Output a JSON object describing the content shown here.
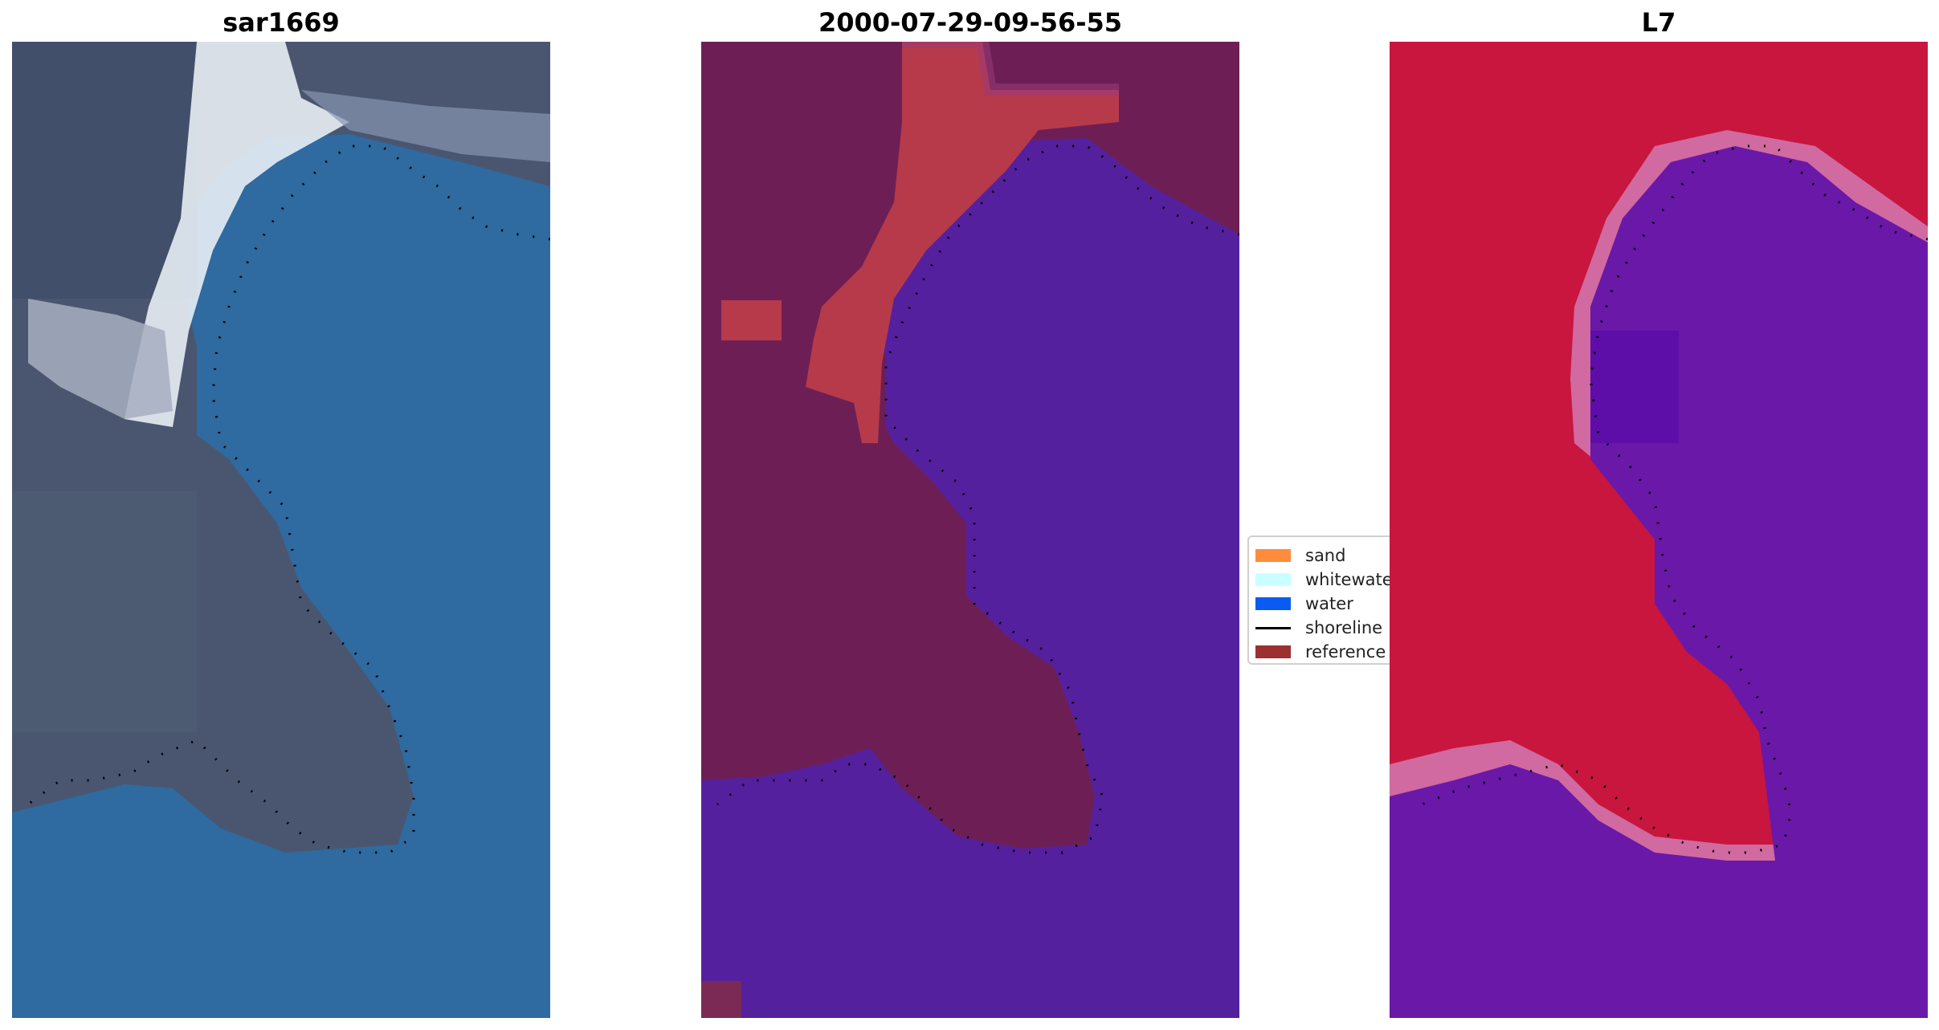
{
  "panels": [
    {
      "title": "sar1669",
      "image": "RGB image"
    },
    {
      "title": "2000-07-29-09-56-55",
      "image": "classified image"
    },
    {
      "title": "L7",
      "image": "MNDWI image"
    }
  ],
  "legend": {
    "items": [
      {
        "label": "sand",
        "color": "#ff8c3c",
        "kind": "patch"
      },
      {
        "label": "whitewater",
        "color": "#c8ffff",
        "kind": "patch"
      },
      {
        "label": "water",
        "color": "#0a5cf0",
        "kind": "patch"
      },
      {
        "label": "shoreline",
        "color": "#000000",
        "kind": "line"
      },
      {
        "label": "reference s",
        "color": "#9b3030",
        "kind": "patch"
      }
    ]
  },
  "colors": {
    "rgb_land": "#4a5670",
    "rgb_water": "#2f6aa0",
    "rgb_whitewater": "#e8eef4",
    "class_land": "#6d1f55",
    "class_water": "#55209e",
    "class_reference": "#b73a4a",
    "ndwi_land": "#c8163f",
    "ndwi_water": "#6a18a8",
    "ndwi_edge": "#d06aa0"
  }
}
